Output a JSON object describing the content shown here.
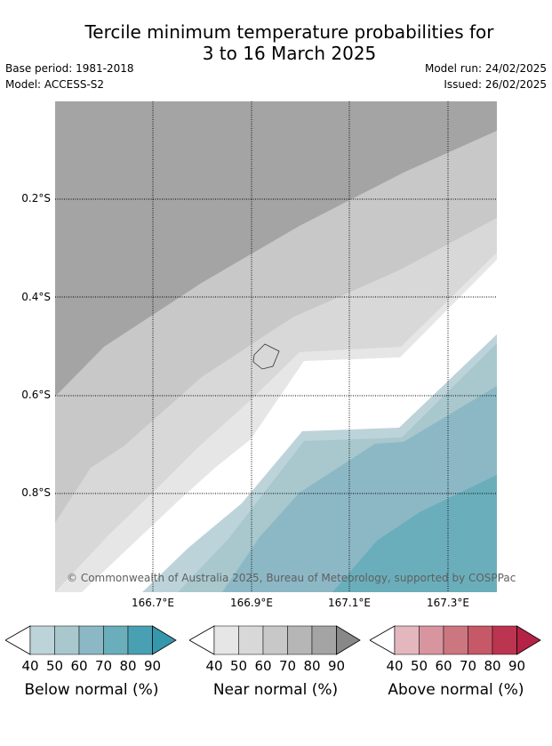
{
  "title": {
    "line1": "Tercile minimum temperature probabilities for",
    "line2": "3 to 16 March 2025"
  },
  "meta": {
    "base_period": "Base period: 1981-2018",
    "model": "Model: ACCESS-S2",
    "model_run": "Model run: 24/02/2025",
    "issued": "Issued: 26/02/2025"
  },
  "map": {
    "lat_labels": [
      "0.2°S",
      "0.4°S",
      "0.6°S",
      "0.8°S"
    ],
    "lon_labels": [
      "166.7°E",
      "166.9°E",
      "167.1°E",
      "167.3°E"
    ],
    "copyright": "© Commonwealth of Australia 2025, Bureau of Meteorology, supported by COSPPac"
  },
  "legends": [
    {
      "name": "below",
      "title": "Below normal (%)",
      "ticks": [
        "40",
        "50",
        "60",
        "70",
        "80",
        "90"
      ],
      "colors": [
        "#bcd3da",
        "#a8c8cd",
        "#8cb8c6",
        "#6aaebb",
        "#4aa0b3",
        "#3597ab"
      ]
    },
    {
      "name": "near",
      "title": "Near normal (%)",
      "ticks": [
        "40",
        "50",
        "60",
        "70",
        "80",
        "90"
      ],
      "colors": [
        "#e6e6e6",
        "#d8d8d8",
        "#c8c8c8",
        "#b6b6b6",
        "#a4a4a4",
        "#888888"
      ]
    },
    {
      "name": "above",
      "title": "Above normal (%)",
      "ticks": [
        "40",
        "50",
        "60",
        "70",
        "80",
        "90"
      ],
      "colors": [
        "#e4b6be",
        "#d8959f",
        "#cc7680",
        "#c55968",
        "#bb3450",
        "#b42245"
      ]
    }
  ]
}
